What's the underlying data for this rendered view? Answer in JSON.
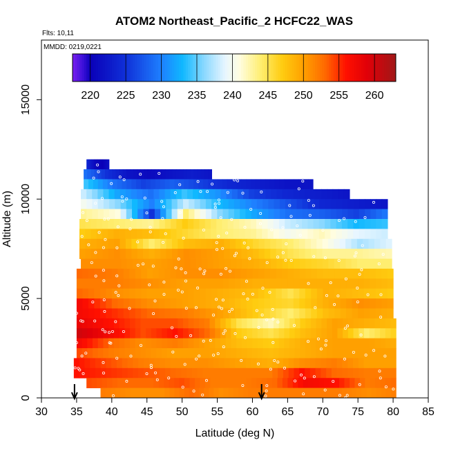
{
  "chart_data": {
    "type": "heatmap",
    "title": "ATOM2 Northeast_Pacific_2 HCFC22_WAS",
    "subtitle_flights": "Flts: 10,11",
    "subtitle_dates": "MMDD: 0219,0221",
    "xlabel": "Latitude (deg N)",
    "ylabel": "Altitude (m)",
    "xlim": [
      30,
      85
    ],
    "ylim": [
      0,
      18000
    ],
    "x_ticks": [
      30,
      35,
      40,
      45,
      50,
      55,
      60,
      65,
      70,
      75,
      80,
      85
    ],
    "y_ticks": [
      0,
      5000,
      10000,
      15000
    ],
    "colorbar": {
      "range": [
        217.5,
        263
      ],
      "ticks": [
        220,
        225,
        230,
        235,
        240,
        245,
        250,
        255,
        260
      ],
      "stops": [
        {
          "v": 217.5,
          "c": "#7a1ff0"
        },
        {
          "v": 219,
          "c": "#3a10d8"
        },
        {
          "v": 220,
          "c": "#0a00b8"
        },
        {
          "v": 225,
          "c": "#1030d8"
        },
        {
          "v": 230,
          "c": "#1e80ff"
        },
        {
          "v": 233,
          "c": "#10b8ff"
        },
        {
          "v": 236,
          "c": "#8ad8ff"
        },
        {
          "v": 239,
          "c": "#e8f6ff"
        },
        {
          "v": 241,
          "c": "#fffde0"
        },
        {
          "v": 244,
          "c": "#ffee70"
        },
        {
          "v": 247,
          "c": "#ffcc10"
        },
        {
          "v": 250,
          "c": "#ffa000"
        },
        {
          "v": 253,
          "c": "#ff6a00"
        },
        {
          "v": 256,
          "c": "#ff1000"
        },
        {
          "v": 259,
          "c": "#e00008"
        },
        {
          "v": 263,
          "c": "#a01818"
        }
      ]
    },
    "arrows_lat": [
      34.7,
      61.3
    ],
    "layers": [
      {
        "alt_lo": 11500,
        "alt_hi": 12000,
        "lat_lo": 36.4,
        "lat_hi": 39.6,
        "values": [
          224,
          221,
          220,
          222
        ]
      },
      {
        "alt_lo": 11000,
        "alt_hi": 11500,
        "lat_lo": 36.0,
        "lat_hi": 54.2,
        "values": [
          229,
          225,
          222,
          221,
          222,
          223,
          222
        ]
      },
      {
        "alt_lo": 10500,
        "alt_hi": 11000,
        "lat_lo": 36.0,
        "lat_hi": 68.6,
        "values": [
          234,
          229,
          226,
          228,
          226,
          224,
          223,
          222,
          222
        ]
      },
      {
        "alt_lo": 10000,
        "alt_hi": 10500,
        "lat_lo": 35.6,
        "lat_hi": 73.8,
        "values": [
          238,
          232,
          229,
          234,
          231,
          226,
          224,
          223,
          222
        ]
      },
      {
        "alt_lo": 9500,
        "alt_hi": 10000,
        "lat_lo": 35.6,
        "lat_hi": 79.2,
        "values": [
          240,
          236,
          230,
          238,
          233,
          230,
          227,
          224,
          223,
          222
        ]
      },
      {
        "alt_lo": 9000,
        "alt_hi": 9500,
        "lat_lo": 35.6,
        "lat_hi": 79.2,
        "values": [
          243,
          241,
          225,
          244,
          236,
          232,
          229,
          228,
          226,
          230
        ]
      },
      {
        "alt_lo": 8500,
        "alt_hi": 9000,
        "lat_lo": 35.4,
        "lat_hi": 79.2,
        "values": [
          245,
          244,
          243,
          247,
          244,
          242,
          238,
          236,
          233,
          234
        ]
      },
      {
        "alt_lo": 8000,
        "alt_hi": 8500,
        "lat_lo": 35.4,
        "lat_hi": 79.2,
        "values": [
          247,
          249,
          248,
          246,
          244,
          243,
          240,
          242,
          239,
          238
        ]
      },
      {
        "alt_lo": 7500,
        "alt_hi": 8000,
        "lat_lo": 35.4,
        "lat_hi": 79.8,
        "values": [
          249,
          250,
          244,
          248,
          249,
          246,
          244,
          241,
          237,
          239
        ]
      },
      {
        "alt_lo": 7000,
        "alt_hi": 7500,
        "lat_lo": 35.4,
        "lat_hi": 79.8,
        "values": [
          250,
          251,
          249,
          251,
          250,
          248,
          245,
          243,
          243,
          242
        ]
      },
      {
        "alt_lo": 6500,
        "alt_hi": 7000,
        "lat_lo": 35.6,
        "lat_hi": 79.8,
        "values": [
          251,
          251,
          250,
          251,
          250,
          249,
          247,
          246,
          244,
          244
        ]
      },
      {
        "alt_lo": 6000,
        "alt_hi": 6500,
        "lat_lo": 35.0,
        "lat_hi": 80.0,
        "values": [
          253,
          252,
          250,
          251,
          251,
          250,
          249,
          248,
          248,
          247
        ]
      },
      {
        "alt_lo": 5500,
        "alt_hi": 6000,
        "lat_lo": 35.0,
        "lat_hi": 80.0,
        "values": [
          252,
          252,
          251,
          250,
          250,
          249,
          249,
          249,
          249,
          248
        ]
      },
      {
        "alt_lo": 5000,
        "alt_hi": 5500,
        "lat_lo": 35.0,
        "lat_hi": 80.0,
        "values": [
          253,
          251,
          250,
          250,
          249,
          248,
          245,
          249,
          248,
          247
        ]
      },
      {
        "alt_lo": 4500,
        "alt_hi": 5000,
        "lat_lo": 35.0,
        "lat_hi": 80.0,
        "values": [
          257,
          253,
          251,
          250,
          249,
          247,
          246,
          249,
          251,
          250
        ]
      },
      {
        "alt_lo": 4000,
        "alt_hi": 4500,
        "lat_lo": 35.0,
        "lat_hi": 80.0,
        "values": [
          257,
          255,
          253,
          252,
          250,
          247,
          244,
          248,
          250,
          249
        ]
      },
      {
        "alt_lo": 3500,
        "alt_hi": 4000,
        "lat_lo": 35.0,
        "lat_hi": 80.4,
        "values": [
          258,
          256,
          254,
          254,
          252,
          245,
          242,
          247,
          250,
          249,
          248
        ]
      },
      {
        "alt_lo": 3000,
        "alt_hi": 3500,
        "lat_lo": 35.0,
        "lat_hi": 80.4,
        "values": [
          260,
          257,
          254,
          256,
          253,
          247,
          245,
          248,
          250,
          244,
          247
        ]
      },
      {
        "alt_lo": 2500,
        "alt_hi": 3000,
        "lat_lo": 35.0,
        "lat_hi": 80.4,
        "values": [
          257,
          253,
          251,
          252,
          250,
          248,
          247,
          249,
          250,
          250,
          249
        ]
      },
      {
        "alt_lo": 2000,
        "alt_hi": 2500,
        "lat_lo": 35.0,
        "lat_hi": 80.4,
        "values": [
          254,
          252,
          251,
          250,
          250,
          249,
          248,
          249,
          250,
          250,
          250
        ]
      },
      {
        "alt_lo": 1500,
        "alt_hi": 2000,
        "lat_lo": 34.6,
        "lat_hi": 80.4,
        "values": [
          256,
          254,
          252,
          251,
          251,
          250,
          249,
          251,
          252,
          250,
          250
        ]
      },
      {
        "alt_lo": 1000,
        "alt_hi": 1500,
        "lat_lo": 34.6,
        "lat_hi": 80.4,
        "values": [
          256,
          255,
          254,
          253,
          252,
          252,
          252,
          256,
          253,
          252,
          252
        ]
      },
      {
        "alt_lo": 500,
        "alt_hi": 1000,
        "lat_lo": 36.4,
        "lat_hi": 80.4,
        "values": [
          254,
          253,
          253,
          254,
          252,
          252,
          253,
          257,
          256,
          252,
          253
        ]
      },
      {
        "alt_lo": 0,
        "alt_hi": 500,
        "lat_lo": 38.4,
        "lat_hi": 80.4,
        "values": [
          252,
          251,
          251,
          253,
          251,
          252,
          252,
          252,
          252,
          251,
          252
        ]
      }
    ]
  }
}
